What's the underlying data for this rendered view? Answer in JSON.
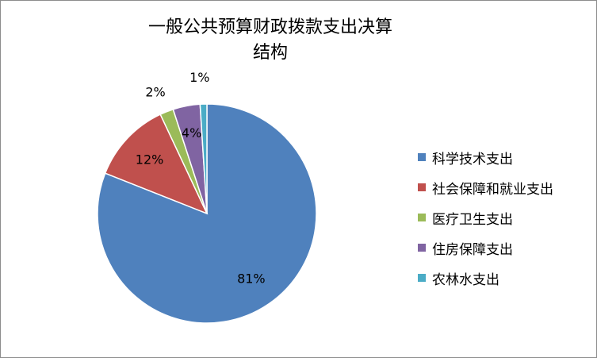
{
  "chart_data": {
    "type": "pie",
    "title_lines": [
      "一般公共预算财政拨款支出决算",
      "结构"
    ],
    "categories": [
      "科学技术支出",
      "社会保障和就业支出",
      "医疗卫生支出",
      "住房保障支出",
      "农林水支出"
    ],
    "values": [
      81,
      12,
      2,
      4,
      1
    ],
    "value_labels": [
      "81%",
      "12%",
      "2%",
      "4%",
      "1%"
    ],
    "colors": [
      "#4F81BD",
      "#C0504D",
      "#9BBB59",
      "#8064A2",
      "#4BACC6"
    ],
    "legend_position": "right",
    "start_angle": "12 o'clock",
    "direction": "clockwise"
  }
}
